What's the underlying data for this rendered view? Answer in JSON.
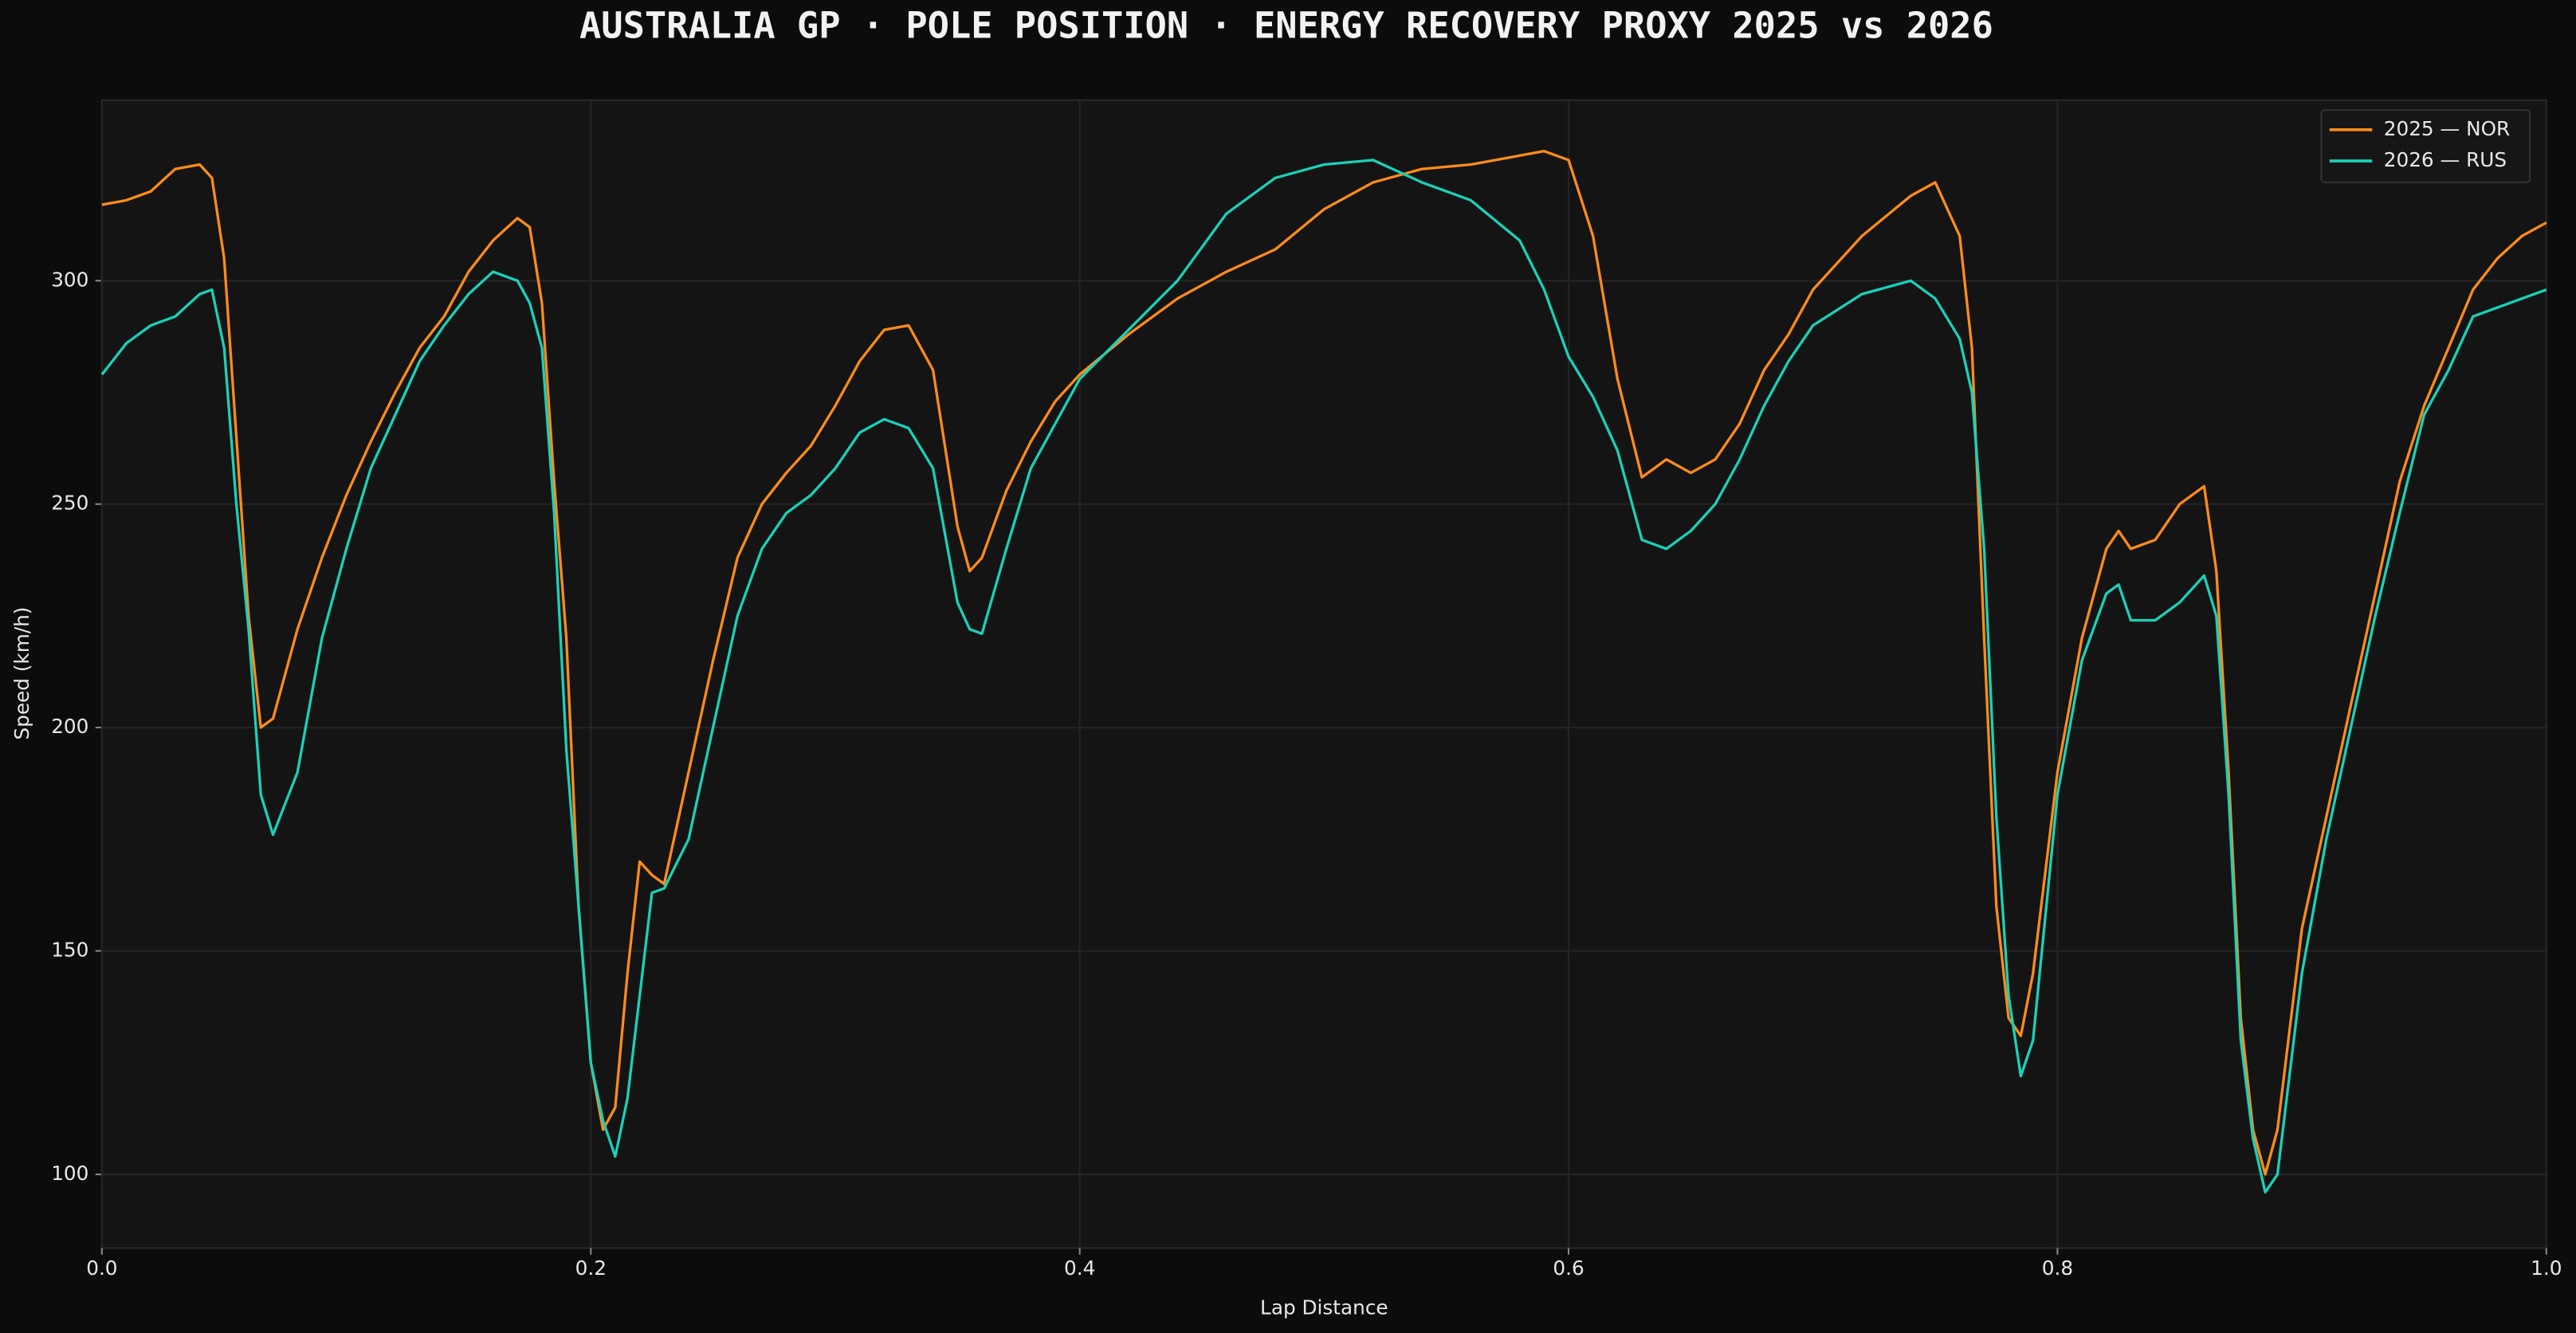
{
  "chart_data": {
    "type": "line",
    "title": "AUSTRALIA GP · POLE POSITION · ENERGY RECOVERY PROXY  2025 vs 2026",
    "x_label": "Lap Distance",
    "y_label": "Speed (km/h)",
    "xlim": [
      0,
      1
    ],
    "ylim": [
      83.5,
      340.4
    ],
    "xticks": [
      {
        "value": 0,
        "label": "0.0"
      },
      0.2,
      0.4,
      0.6,
      0.8,
      {
        "value": 1,
        "label": "1.0"
      }
    ],
    "yticks": [
      100,
      150,
      200,
      250,
      300
    ],
    "grid": true,
    "legend": "upper right",
    "x": [
      0,
      0.01,
      0.02,
      0.03,
      0.04,
      0.045,
      0.05,
      0.055,
      0.06,
      0.065,
      0.07,
      0.08,
      0.09,
      0.1,
      0.11,
      0.12,
      0.13,
      0.14,
      0.15,
      0.16,
      0.17,
      0.175,
      0.18,
      0.185,
      0.19,
      0.195,
      0.2,
      0.205,
      0.21,
      0.215,
      0.22,
      0.225,
      0.23,
      0.24,
      0.25,
      0.26,
      0.27,
      0.28,
      0.29,
      0.3,
      0.31,
      0.32,
      0.33,
      0.34,
      0.35,
      0.355,
      0.36,
      0.37,
      0.38,
      0.39,
      0.4,
      0.42,
      0.44,
      0.46,
      0.48,
      0.5,
      0.52,
      0.54,
      0.56,
      0.58,
      0.59,
      0.6,
      0.61,
      0.62,
      0.63,
      0.64,
      0.65,
      0.66,
      0.67,
      0.68,
      0.69,
      0.7,
      0.72,
      0.74,
      0.75,
      0.76,
      0.765,
      0.77,
      0.775,
      0.78,
      0.785,
      0.79,
      0.8,
      0.81,
      0.82,
      0.825,
      0.83,
      0.84,
      0.85,
      0.86,
      0.865,
      0.87,
      0.875,
      0.88,
      0.885,
      0.89,
      0.9,
      0.91,
      0.92,
      0.93,
      0.94,
      0.95,
      0.96,
      0.97,
      0.98,
      0.99,
      1
    ],
    "series": [
      {
        "name": "2025 — NOR",
        "color": "#ff8c1a",
        "values": [
          317,
          318,
          320,
          325,
          326,
          323,
          305,
          265,
          225,
          200,
          202,
          222,
          238,
          252,
          264,
          275,
          285,
          292,
          302,
          309,
          314,
          312,
          295,
          255,
          220,
          160,
          125,
          110,
          115,
          145,
          170,
          167,
          165,
          190,
          215,
          238,
          250,
          257,
          263,
          272,
          282,
          289,
          290,
          280,
          245,
          235,
          238,
          253,
          264,
          273,
          279,
          288,
          296,
          302,
          307,
          316,
          322,
          325,
          326,
          328,
          329,
          327,
          310,
          278,
          256,
          260,
          257,
          260,
          268,
          280,
          288,
          298,
          310,
          319,
          322,
          310,
          285,
          220,
          160,
          135,
          131,
          145,
          190,
          220,
          240,
          244,
          240,
          242,
          250,
          254,
          235,
          190,
          135,
          110,
          100,
          110,
          155,
          180,
          205,
          230,
          255,
          272,
          285,
          298,
          305,
          310,
          313
        ]
      },
      {
        "name": "2026 — RUS",
        "color": "#1ad1b8",
        "values": [
          279,
          286,
          290,
          292,
          297,
          298,
          285,
          250,
          222,
          185,
          176,
          190,
          220,
          240,
          258,
          270,
          282,
          290,
          297,
          302,
          300,
          295,
          285,
          248,
          195,
          160,
          125,
          112,
          104,
          117,
          140,
          163,
          164,
          175,
          200,
          225,
          240,
          248,
          252,
          258,
          266,
          269,
          267,
          258,
          228,
          222,
          221,
          240,
          258,
          268,
          278,
          289,
          300,
          315,
          323,
          326,
          327,
          322,
          318,
          309,
          298,
          283,
          274,
          262,
          242,
          240,
          244,
          250,
          260,
          272,
          282,
          290,
          297,
          300,
          296,
          287,
          275,
          240,
          180,
          140,
          122,
          130,
          185,
          215,
          230,
          232,
          224,
          224,
          228,
          234,
          225,
          185,
          130,
          108,
          96,
          100,
          145,
          175,
          200,
          225,
          248,
          270,
          280,
          292,
          294,
          296,
          298
        ]
      }
    ]
  }
}
